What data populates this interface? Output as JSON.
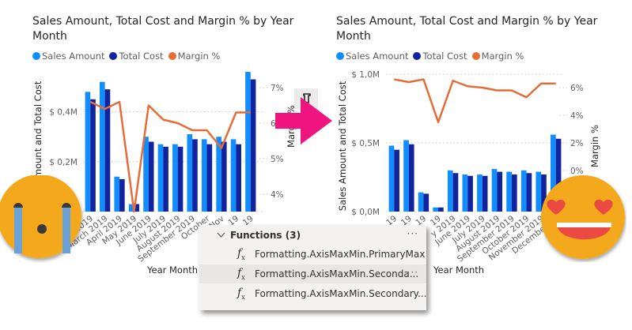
{
  "colors": {
    "sales": "#118dff",
    "cost": "#12239e",
    "margin": "#e66c37",
    "arrow": "#f0147f",
    "emoji_face": "#f4a81d",
    "tears": "#6aa2d8",
    "hearts": "#ea4a42"
  },
  "chart_data": [
    {
      "type": "bar",
      "panel": "left",
      "title": "Sales Amount, Total Cost and Margin % by Year Month",
      "legend": [
        "Sales Amount",
        "Total Cost",
        "Margin %"
      ],
      "legend_position": "top-left",
      "xlabel": "Year Month",
      "ylabel": "Sales Amount and Total Cost",
      "y2label": "Margin %",
      "categories": [
        "January 2019",
        "February 2019",
        "March 2019",
        "April 2019",
        "May 2019",
        "June 2019",
        "July 2019",
        "August 2019",
        "September 2019",
        "October 2019",
        "November 2019",
        "December 2019"
      ],
      "x_tick_labels_visible": [
        "y 2019",
        "March 2019",
        "April 2019",
        "May 2019",
        "June 2019",
        "July 2019",
        "August 2019",
        "September 2019",
        "October",
        "Nov",
        "19",
        "19"
      ],
      "series": [
        {
          "name": "Sales Amount",
          "axis": "primary",
          "kind": "bar",
          "values": [
            0.48,
            0.52,
            0.14,
            0.03,
            0.3,
            0.27,
            0.27,
            0.31,
            0.29,
            0.3,
            0.29,
            0.56
          ]
        },
        {
          "name": "Total Cost",
          "axis": "primary",
          "kind": "bar",
          "values": [
            0.45,
            0.49,
            0.13,
            0.03,
            0.28,
            0.26,
            0.26,
            0.29,
            0.27,
            0.28,
            0.27,
            0.53
          ]
        },
        {
          "name": "Margin %",
          "axis": "secondary",
          "kind": "line",
          "values": [
            6.6,
            6.4,
            6.6,
            3.5,
            6.5,
            6.1,
            6.0,
            5.8,
            5.8,
            5.3,
            6.3,
            6.3
          ]
        }
      ],
      "ylim": [
        0,
        0.56
      ],
      "y_ticks": [
        {
          "v": 0.2,
          "label": "$ 0,2M"
        },
        {
          "v": 0.4,
          "label": "$ 0,4M"
        }
      ],
      "y2lim": [
        3.5,
        7.5
      ],
      "y2_ticks": [
        {
          "v": 4,
          "label": "4%"
        },
        {
          "v": 5,
          "label": "5%"
        },
        {
          "v": 6,
          "label": "6%"
        },
        {
          "v": 7,
          "label": "7%"
        }
      ],
      "grid": true
    },
    {
      "type": "bar",
      "panel": "right",
      "title": "Sales Amount, Total Cost and Margin % by Year Month",
      "legend": [
        "Sales Amount",
        "Total Cost",
        "Margin %"
      ],
      "legend_position": "top-left",
      "xlabel": "Year Month",
      "ylabel": "Sales Amount and Total Cost",
      "y2label": "Margin %",
      "categories": [
        "January 2019",
        "February 2019",
        "March 2019",
        "April 2019",
        "May 2019",
        "June 2019",
        "July 2019",
        "August 2019",
        "September 2019",
        "October 2019",
        "November 2019",
        "December 2019"
      ],
      "x_tick_labels_visible": [
        "19",
        "19",
        "19",
        "19",
        "y 2019",
        "June 2019",
        "July 2019",
        "August 2019",
        "September 2019",
        "October 2019",
        "November 2019",
        "December 20"
      ],
      "series": [
        {
          "name": "Sales Amount",
          "axis": "primary",
          "kind": "bar",
          "values": [
            0.48,
            0.52,
            0.14,
            0.03,
            0.3,
            0.27,
            0.27,
            0.31,
            0.29,
            0.3,
            0.29,
            0.56
          ]
        },
        {
          "name": "Total Cost",
          "axis": "primary",
          "kind": "bar",
          "values": [
            0.45,
            0.49,
            0.13,
            0.03,
            0.28,
            0.26,
            0.26,
            0.29,
            0.27,
            0.28,
            0.27,
            0.53
          ]
        },
        {
          "name": "Margin %",
          "axis": "secondary",
          "kind": "line",
          "values": [
            6.6,
            6.4,
            6.6,
            3.5,
            6.5,
            6.1,
            6.0,
            5.8,
            5.8,
            5.3,
            6.3,
            6.3
          ]
        }
      ],
      "ylim": [
        0,
        1.0
      ],
      "y_ticks": [
        {
          "v": 0,
          "label": "$ 0,0M"
        },
        {
          "v": 0.5,
          "label": "$ 0,5M"
        },
        {
          "v": 1.0,
          "label": "$ 1,0M"
        }
      ],
      "y2lim": [
        -1,
        7
      ],
      "y2_ticks": [
        {
          "v": 0,
          "label": "0%"
        },
        {
          "v": 2,
          "label": "2%"
        },
        {
          "v": 4,
          "label": "4%"
        },
        {
          "v": 6,
          "label": "6%"
        }
      ],
      "grid": true
    }
  ],
  "popup": {
    "header": "Functions (3)",
    "more": "···",
    "items": [
      {
        "label": "Formatting.AxisMaxMin.PrimaryMax",
        "hover": false
      },
      {
        "label": "Formatting.AxisMaxMin.Seconda...",
        "hover": true
      },
      {
        "label": "Formatting.AxisMaxMin.Secondary...",
        "hover": false
      }
    ],
    "fx_icon": "f"
  },
  "icons": {
    "toolbar": "format-painter-icon",
    "arrow": "right-arrow-icon",
    "sad": "crying-face-emoji",
    "happy": "heart-eyes-emoji"
  }
}
